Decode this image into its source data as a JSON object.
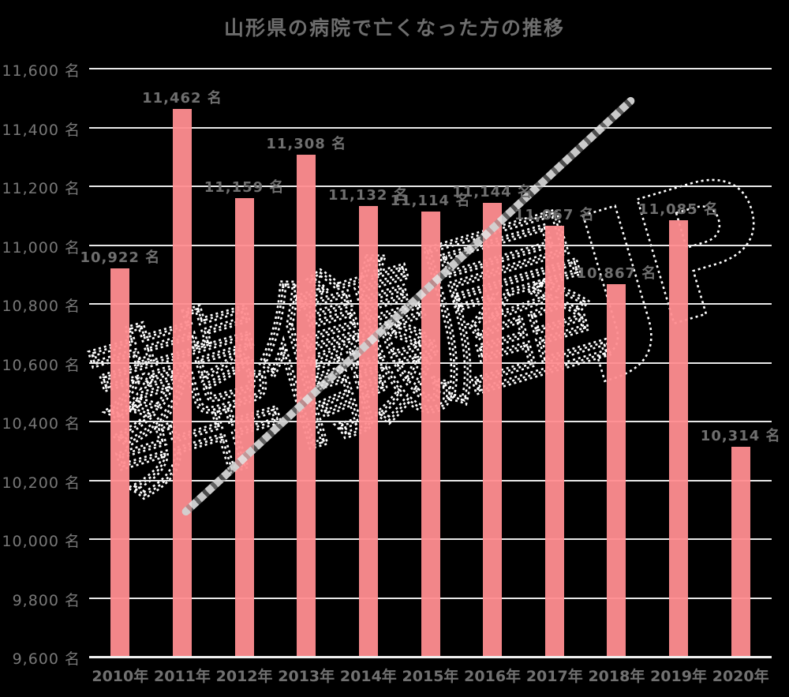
{
  "title": "山形県の病院で亡くなった方の推移",
  "watermark": {
    "text": "葬儀屋JP"
  },
  "chart_data": {
    "type": "bar",
    "title": "山形県の病院で亡くなった方の推移",
    "categories": [
      "2010年",
      "2011年",
      "2012年",
      "2013年",
      "2014年",
      "2015年",
      "2016年",
      "2017年",
      "2018年",
      "2019年",
      "2020年"
    ],
    "values": [
      10922,
      11462,
      11159,
      11308,
      11132,
      11114,
      11144,
      11067,
      10867,
      11085,
      10314
    ],
    "value_labels": [
      "10,922 名",
      "11,462 名",
      "11,159 名",
      "11,308 名",
      "11,132 名",
      "11,114 名",
      "11,144 名",
      "11,067 名",
      "10,867 名",
      "11,085 名",
      "10,314 名"
    ],
    "unit": "名",
    "xlabel": "",
    "ylabel": "",
    "ylim": [
      9600,
      11600
    ],
    "y_tick_step": 200,
    "y_tick_labels": [
      "9,600 名",
      "9,800 名",
      "10,000 名",
      "10,200 名",
      "10,400 名",
      "10,600 名",
      "10,800 名",
      "11,000 名",
      "11,200 名",
      "11,400 名",
      "11,600 名"
    ],
    "grid": true,
    "legend": false,
    "colors": {
      "background": "#000000",
      "bar": "#ff8d90",
      "gridline": "#e8e8e8",
      "axis_line": "#f0f0f0",
      "label_text": "#787878",
      "title_text": "#6d6d6d",
      "watermark_outline": "#ffffff",
      "watermark_slash": "#c8c8c8"
    }
  }
}
